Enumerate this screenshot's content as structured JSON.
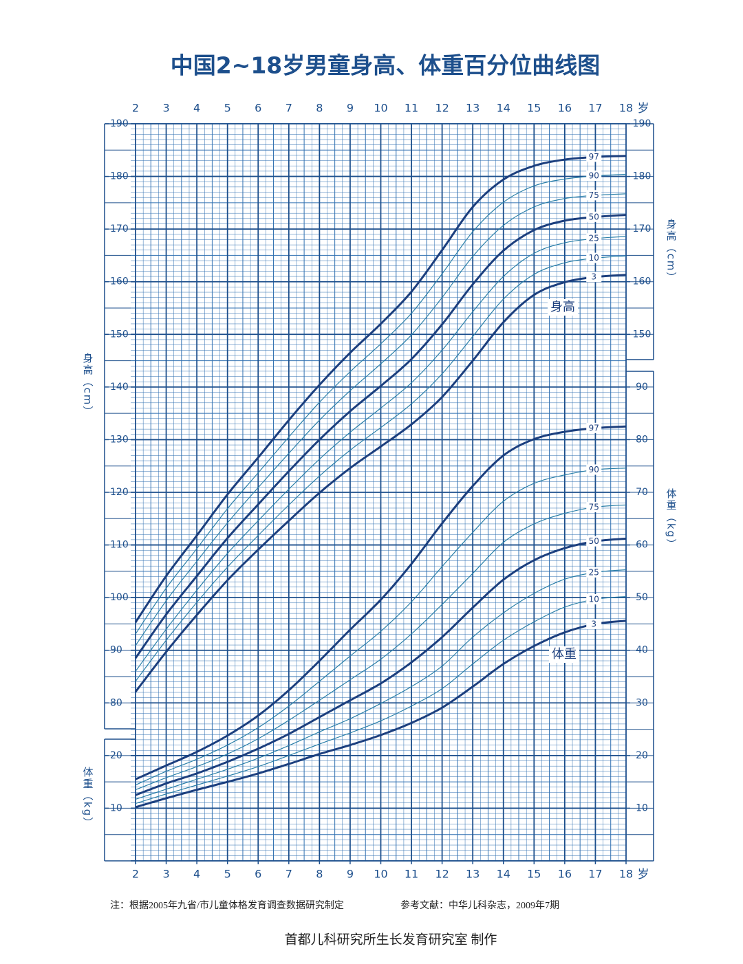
{
  "title": "中国2~18岁男童身高、体重百分位曲线图",
  "chart_data": [
    {
      "type": "line",
      "y_label": "身高（cm）",
      "curve_label": "身高",
      "x_label": "岁",
      "x": [
        2,
        3,
        4,
        5,
        6,
        7,
        8,
        9,
        10,
        11,
        12,
        13,
        14,
        15,
        16,
        17,
        18
      ],
      "xlim": [
        2,
        18
      ],
      "xticks": [
        2,
        3,
        4,
        5,
        6,
        7,
        8,
        9,
        10,
        11,
        12,
        13,
        14,
        15,
        16,
        17,
        18
      ],
      "ylim": [
        50,
        190
      ],
      "yticks": [
        80,
        90,
        100,
        110,
        120,
        130,
        140,
        150,
        160,
        170,
        180,
        190
      ],
      "yticks_right": [
        150,
        160,
        170,
        180,
        190
      ],
      "series": [
        {
          "name": "97",
          "color": "#1c3f7e",
          "line_width": 3,
          "values": [
            95.3,
            104.1,
            111.8,
            119.6,
            126.6,
            133.7,
            140.4,
            146.5,
            152.0,
            158.1,
            166.0,
            174.2,
            179.4,
            182.0,
            183.2,
            183.7,
            183.9
          ]
        },
        {
          "name": "90",
          "color": "#2a7fa8",
          "line_width": 1.2,
          "values": [
            93.1,
            101.8,
            109.3,
            116.9,
            123.7,
            130.5,
            137.1,
            142.9,
            148.2,
            154.0,
            161.5,
            169.5,
            175.1,
            178.2,
            179.5,
            180.1,
            180.4
          ]
        },
        {
          "name": "75",
          "color": "#2a7fa8",
          "line_width": 1.2,
          "values": [
            90.9,
            99.4,
            106.9,
            114.2,
            120.9,
            127.4,
            133.7,
            139.3,
            144.4,
            149.9,
            157.0,
            164.8,
            170.7,
            174.2,
            175.8,
            176.4,
            176.7
          ]
        },
        {
          "name": "50",
          "color": "#1c3f7e",
          "line_width": 3,
          "values": [
            88.5,
            96.8,
            104.1,
            111.3,
            117.7,
            124.0,
            130.0,
            135.4,
            140.2,
            145.3,
            151.9,
            159.5,
            165.9,
            169.8,
            171.6,
            172.3,
            172.7
          ]
        },
        {
          "name": "25",
          "color": "#2a7fa8",
          "line_width": 1.2,
          "values": [
            86.0,
            94.0,
            101.4,
            108.4,
            114.6,
            120.6,
            126.3,
            131.4,
            136.0,
            140.8,
            147.0,
            154.3,
            161.0,
            165.4,
            167.4,
            168.2,
            168.6
          ]
        },
        {
          "name": "10",
          "color": "#2a7fa8",
          "line_width": 1.2,
          "values": [
            84.1,
            91.9,
            99.1,
            105.8,
            111.8,
            117.6,
            123.1,
            128.0,
            132.3,
            136.8,
            142.5,
            149.6,
            156.7,
            161.4,
            163.6,
            164.5,
            164.9
          ]
        },
        {
          "name": "3",
          "color": "#1c3f7e",
          "line_width": 3,
          "values": [
            82.1,
            89.7,
            96.7,
            103.3,
            109.1,
            114.6,
            119.9,
            124.6,
            128.7,
            132.9,
            138.1,
            145.0,
            152.3,
            157.5,
            159.9,
            160.9,
            161.3
          ]
        }
      ]
    },
    {
      "type": "line",
      "y_label": "体重（kg）",
      "curve_label": "体重",
      "x_label": "岁",
      "x": [
        2,
        3,
        4,
        5,
        6,
        7,
        8,
        9,
        10,
        11,
        12,
        13,
        14,
        15,
        16,
        17,
        18
      ],
      "xlim": [
        2,
        18
      ],
      "xticks": [
        2,
        3,
        4,
        5,
        6,
        7,
        8,
        9,
        10,
        11,
        12,
        13,
        14,
        15,
        16,
        17,
        18
      ],
      "ylim": [
        0,
        140
      ],
      "yticks": [
        10,
        20
      ],
      "yticks_right": [
        10,
        20,
        30,
        40,
        50,
        60,
        70,
        80,
        90
      ],
      "series": [
        {
          "name": "97",
          "color": "#1c3f7e",
          "line_width": 3,
          "values": [
            15.5,
            18.1,
            20.7,
            23.8,
            27.6,
            32.4,
            38.0,
            43.9,
            49.6,
            56.4,
            64.1,
            71.2,
            77.0,
            80.1,
            81.5,
            82.2,
            82.5
          ]
        },
        {
          "name": "90",
          "color": "#2a7fa8",
          "line_width": 1.2,
          "values": [
            14.4,
            17.0,
            19.3,
            22.0,
            25.3,
            29.4,
            34.1,
            38.9,
            43.6,
            49.2,
            55.9,
            62.4,
            68.3,
            71.7,
            73.3,
            74.3,
            74.6
          ]
        },
        {
          "name": "75",
          "color": "#2a7fa8",
          "line_width": 1.2,
          "values": [
            13.5,
            15.8,
            17.9,
            20.3,
            23.2,
            26.7,
            30.5,
            34.4,
            38.3,
            43.1,
            48.7,
            54.6,
            60.5,
            64.0,
            66.0,
            67.2,
            67.6
          ]
        },
        {
          "name": "50",
          "color": "#1c3f7e",
          "line_width": 3,
          "values": [
            12.5,
            14.7,
            16.6,
            18.8,
            21.3,
            24.1,
            27.3,
            30.5,
            33.7,
            37.7,
            42.5,
            48.1,
            53.4,
            57.1,
            59.4,
            60.7,
            61.2
          ]
        },
        {
          "name": "25",
          "color": "#2a7fa8",
          "line_width": 1.2,
          "values": [
            11.7,
            13.6,
            15.5,
            17.4,
            19.5,
            21.9,
            24.5,
            27.0,
            29.9,
            33.1,
            37.0,
            42.5,
            47.1,
            50.8,
            53.5,
            54.8,
            55.3
          ]
        },
        {
          "name": "10",
          "color": "#2a7fa8",
          "line_width": 1.2,
          "values": [
            10.9,
            12.7,
            14.4,
            16.1,
            17.9,
            20.0,
            22.2,
            24.3,
            26.6,
            29.4,
            32.7,
            37.4,
            41.9,
            45.4,
            48.2,
            49.7,
            50.2
          ]
        },
        {
          "name": "3",
          "color": "#1c3f7e",
          "line_width": 3,
          "values": [
            10.2,
            11.9,
            13.5,
            15.0,
            16.6,
            18.4,
            20.3,
            22.0,
            23.9,
            26.2,
            29.1,
            33.1,
            37.4,
            40.8,
            43.4,
            45.0,
            45.6
          ]
        }
      ]
    }
  ],
  "notes": [
    "注：根据2005年九省/市儿童体格发育调查数据研究制定",
    "参考文献：中华儿科杂志，2009年7期"
  ],
  "footer": "首都儿科研究所生长发育研究室  制作"
}
